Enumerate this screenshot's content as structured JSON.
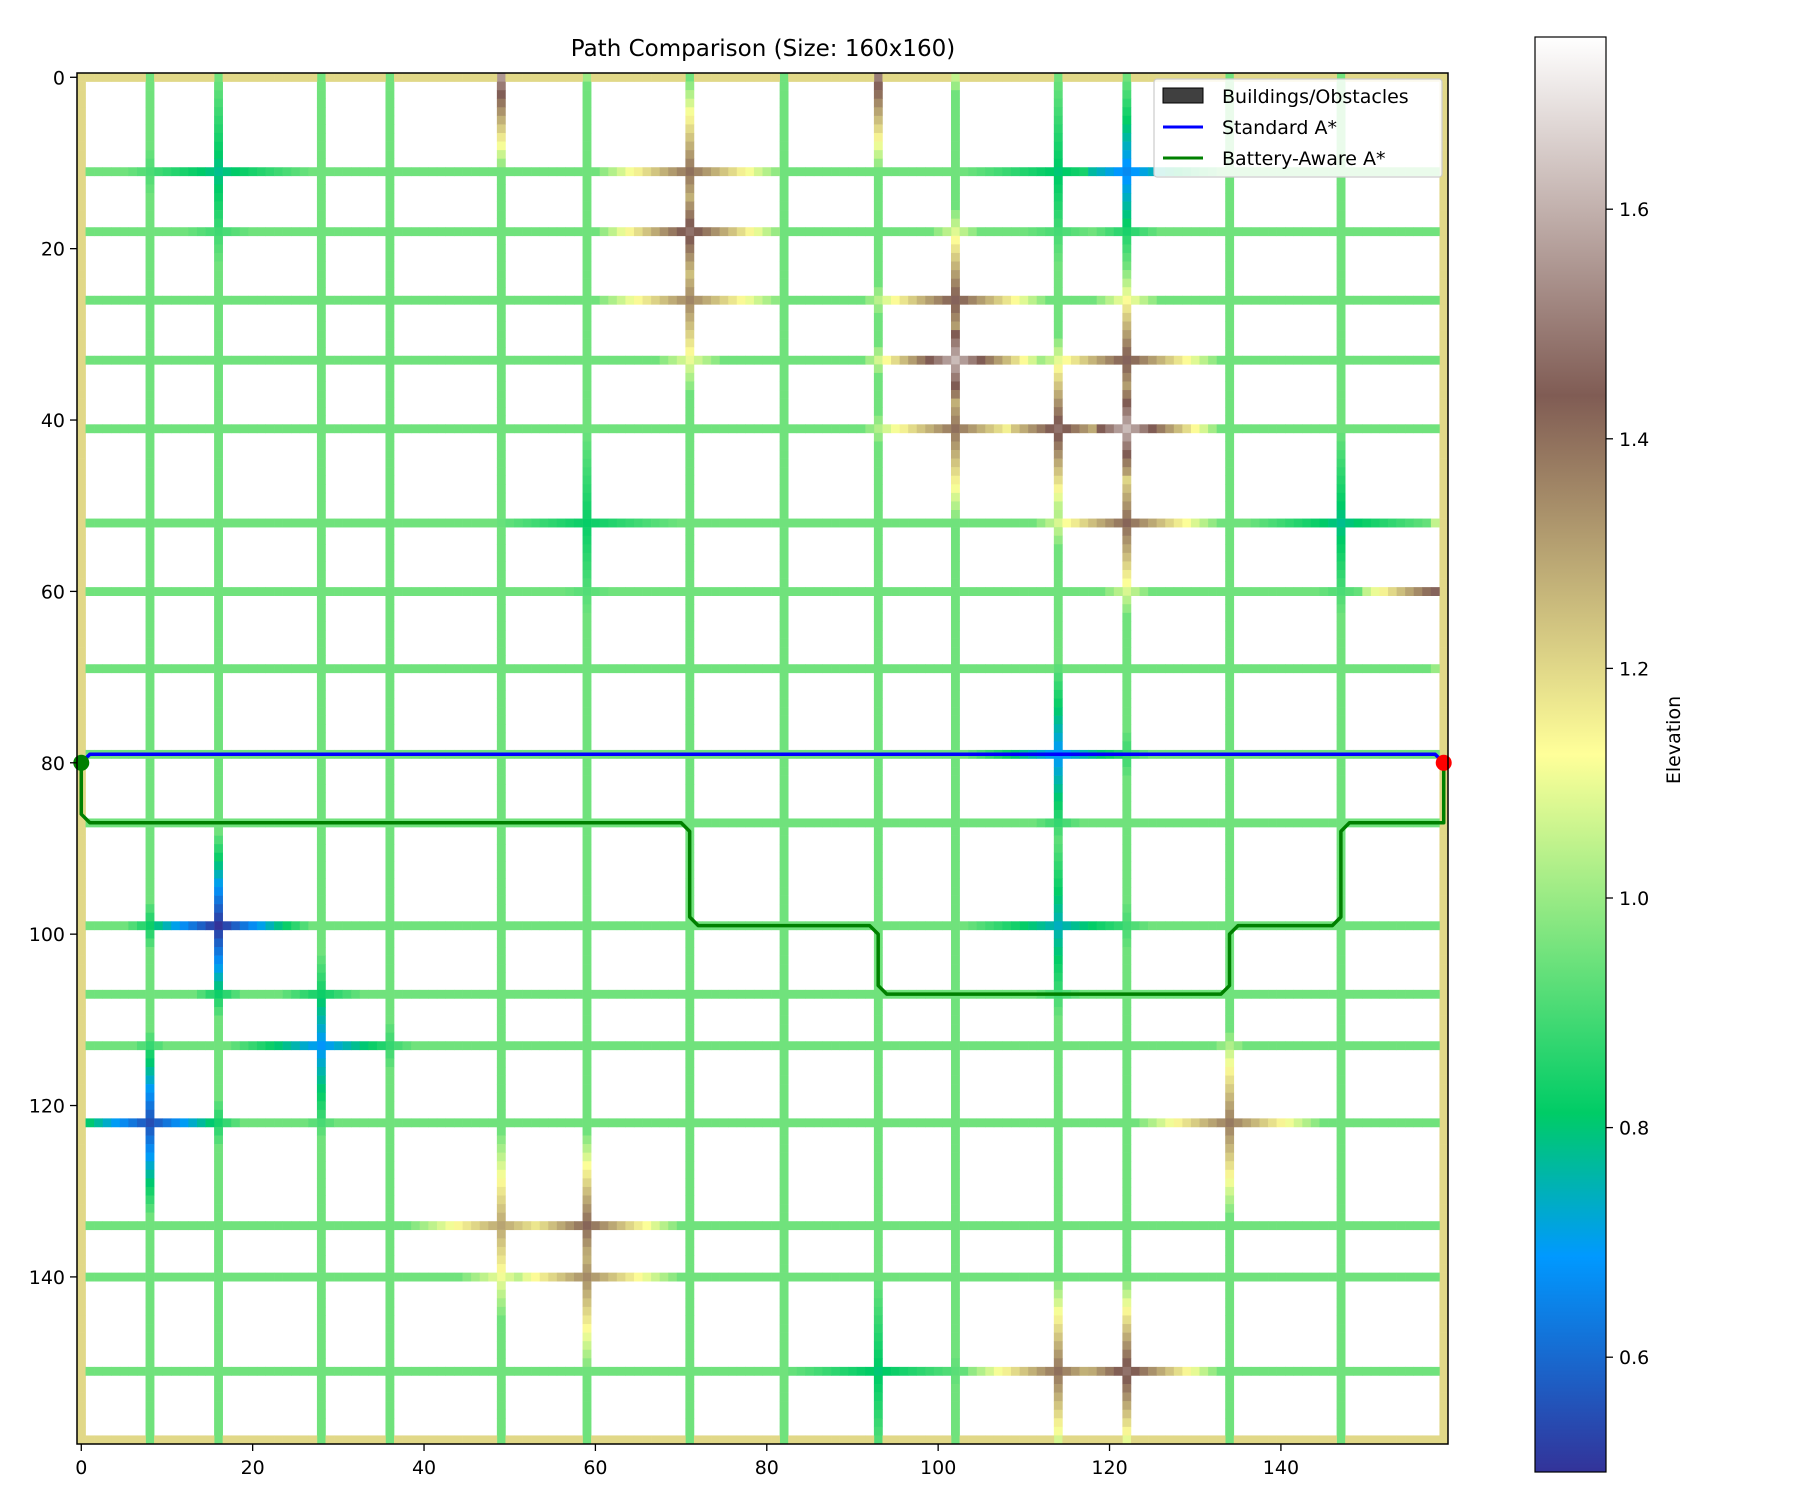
{
  "chart_data": {
    "type": "heatmap",
    "title": "Path Comparison (Size: 160x160)",
    "grid_size": [
      160,
      160
    ],
    "xlim": [
      0,
      160
    ],
    "ylim": [
      160,
      0
    ],
    "x_ticks": [
      0,
      20,
      40,
      60,
      80,
      100,
      120,
      140
    ],
    "y_ticks": [
      0,
      20,
      40,
      60,
      80,
      100,
      120,
      140
    ],
    "grid": false,
    "background_color": "#ffffff",
    "roads": {
      "vertical_x": [
        0,
        8,
        16,
        28,
        36,
        49,
        59,
        71,
        82,
        93,
        102,
        114,
        122,
        134,
        147,
        159
      ],
      "horizontal_y": [
        0,
        11,
        18,
        26,
        33,
        41,
        52,
        60,
        69,
        79,
        87,
        99,
        107,
        113,
        122,
        134,
        140,
        151,
        159
      ],
      "base_elevation": 0.95,
      "edge_elevation": 1.2
    },
    "elevation_features": [
      {
        "x": 16,
        "y": 99,
        "value": 0.5
      },
      {
        "x": 8,
        "y": 122,
        "value": 0.55
      },
      {
        "x": 28,
        "y": 113,
        "value": 0.68
      },
      {
        "x": 122,
        "y": 11,
        "value": 0.66
      },
      {
        "x": 114,
        "y": 79,
        "value": 0.68
      },
      {
        "x": 114,
        "y": 99,
        "value": 0.74
      },
      {
        "x": 16,
        "y": 11,
        "value": 0.78
      },
      {
        "x": 114,
        "y": 11,
        "value": 0.8
      },
      {
        "x": 147,
        "y": 52,
        "value": 0.78
      },
      {
        "x": 59,
        "y": 52,
        "value": 0.82
      },
      {
        "x": 93,
        "y": 151,
        "value": 0.8
      },
      {
        "x": 71,
        "y": 18,
        "value": 1.48
      },
      {
        "x": 71,
        "y": 11,
        "value": 1.4
      },
      {
        "x": 71,
        "y": 26,
        "value": 1.36
      },
      {
        "x": 102,
        "y": 26,
        "value": 1.45
      },
      {
        "x": 102,
        "y": 33,
        "value": 1.62
      },
      {
        "x": 102,
        "y": 41,
        "value": 1.4
      },
      {
        "x": 114,
        "y": 41,
        "value": 1.48
      },
      {
        "x": 122,
        "y": 41,
        "value": 1.62
      },
      {
        "x": 122,
        "y": 33,
        "value": 1.45
      },
      {
        "x": 122,
        "y": 52,
        "value": 1.42
      },
      {
        "x": 59,
        "y": 134,
        "value": 1.42
      },
      {
        "x": 49,
        "y": 134,
        "value": 1.3
      },
      {
        "x": 59,
        "y": 140,
        "value": 1.35
      },
      {
        "x": 134,
        "y": 122,
        "value": 1.38
      },
      {
        "x": 122,
        "y": 151,
        "value": 1.48
      },
      {
        "x": 114,
        "y": 151,
        "value": 1.4
      },
      {
        "x": 49,
        "y": 0,
        "value": 1.55
      },
      {
        "x": 93,
        "y": 0,
        "value": 1.5
      },
      {
        "x": 159,
        "y": 60,
        "value": 1.5
      }
    ],
    "legend": {
      "placement": "upper right",
      "entries": [
        {
          "label": "Buildings/Obstacles",
          "kind": "patch",
          "color": "#404040"
        },
        {
          "label": "Standard A*",
          "kind": "line",
          "color": "#0000ff"
        },
        {
          "label": "Battery-Aware A*",
          "kind": "line",
          "color": "#008000"
        }
      ]
    },
    "series": [
      {
        "name": "Standard A*",
        "color": "#0000ff",
        "points": [
          [
            0,
            80
          ],
          [
            1,
            79
          ],
          [
            158,
            79
          ],
          [
            159,
            80
          ]
        ]
      },
      {
        "name": "Battery-Aware A*",
        "color": "#008000",
        "points": [
          [
            0,
            80
          ],
          [
            0,
            86
          ],
          [
            1,
            87
          ],
          [
            70,
            87
          ],
          [
            71,
            88
          ],
          [
            71,
            98
          ],
          [
            72,
            99
          ],
          [
            92,
            99
          ],
          [
            93,
            100
          ],
          [
            93,
            106
          ],
          [
            94,
            107
          ],
          [
            133,
            107
          ],
          [
            134,
            106
          ],
          [
            134,
            100
          ],
          [
            135,
            99
          ],
          [
            146,
            99
          ],
          [
            147,
            98
          ],
          [
            147,
            88
          ],
          [
            148,
            87
          ],
          [
            159,
            87
          ],
          [
            159,
            80
          ]
        ]
      }
    ],
    "markers": [
      {
        "label": "start",
        "x": 0,
        "y": 80,
        "color": "#008000"
      },
      {
        "label": "goal",
        "x": 159,
        "y": 80,
        "color": "#ff0000"
      }
    ],
    "colorbar": {
      "label": "Elevation",
      "colormap": "terrain",
      "range": [
        0.5,
        1.75
      ],
      "ticks": [
        0.6,
        0.8,
        1.0,
        1.2,
        1.4,
        1.6
      ]
    }
  }
}
